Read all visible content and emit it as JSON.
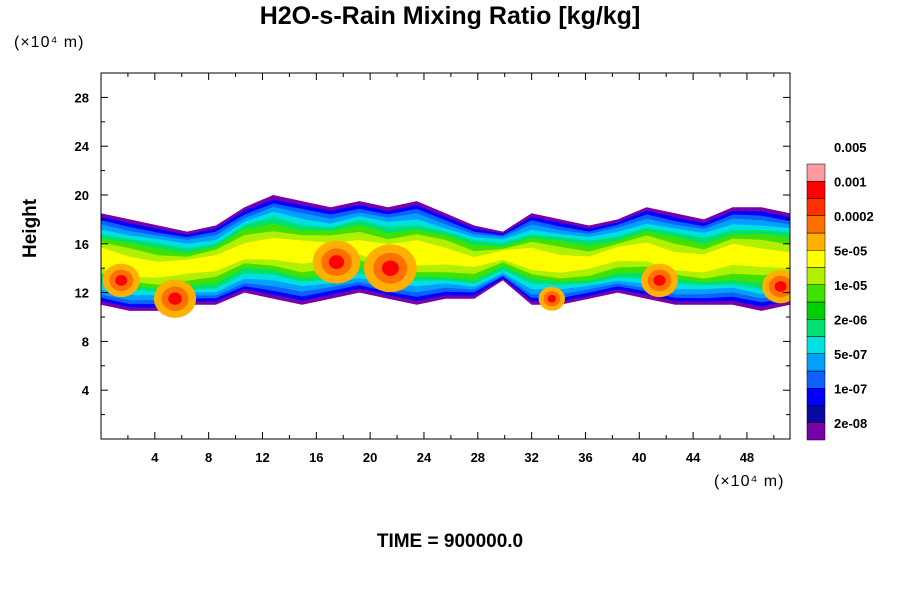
{
  "chart_data": {
    "type": "heatmap",
    "title": "H2O-s-Rain Mixing Ratio [kg/kg]",
    "xlabel": "",
    "ylabel": "Height",
    "x_unit_label": "(×10⁴ m)",
    "y_unit_label": "(×10⁴ m)",
    "xlim": [
      0,
      51.2
    ],
    "ylim": [
      0,
      30
    ],
    "x_ticks": [
      4,
      8,
      12,
      16,
      20,
      24,
      28,
      32,
      36,
      40,
      44,
      48
    ],
    "y_ticks": [
      4,
      8,
      12,
      16,
      20,
      24,
      28
    ],
    "x_tick_labels": [
      "4",
      "8",
      "12",
      "16",
      "20",
      "24",
      "28",
      "32",
      "36",
      "40",
      "44",
      "48"
    ],
    "y_tick_labels": [
      "4",
      "8",
      "12",
      "16",
      "20",
      "24",
      "28"
    ],
    "colorbar": {
      "levels": [
        "2e-08",
        "1e-07",
        "5e-07",
        "2e-06",
        "1e-05",
        "5e-05",
        "0.0002",
        "0.001",
        "0.005"
      ],
      "colors": [
        "#7a00a8",
        "#0a0aa0",
        "#0000ff",
        "#1060ff",
        "#00a0ff",
        "#00e0e0",
        "#00e070",
        "#00d000",
        "#40e000",
        "#b0f000",
        "#ffff00",
        "#ffb000",
        "#ff7000",
        "#ff3000",
        "#ff0000",
        "#ff9aa0"
      ]
    },
    "cloud_band": {
      "x_range": [
        0,
        51.2
      ],
      "bottom": [
        11,
        10.5,
        10.5,
        11,
        11,
        12,
        11.5,
        11,
        11.5,
        12,
        11.5,
        11,
        11.5,
        11.5,
        13,
        11,
        11,
        11.5,
        12,
        11.5,
        11,
        11,
        11,
        10.5,
        11
      ],
      "top": [
        18.5,
        18,
        17.5,
        17,
        17.5,
        19,
        20,
        19.5,
        19,
        19.5,
        19,
        19.5,
        18.5,
        17.5,
        17,
        18.5,
        18,
        17.5,
        18,
        19,
        18.5,
        18,
        19,
        19,
        18.5
      ],
      "hotspots": [
        {
          "x": 1.5,
          "y": 13,
          "r": 0.7
        },
        {
          "x": 5.5,
          "y": 11.5,
          "r": 0.8
        },
        {
          "x": 17.5,
          "y": 14.5,
          "r": 0.9
        },
        {
          "x": 21.5,
          "y": 14,
          "r": 1.0
        },
        {
          "x": 33.5,
          "y": 11.5,
          "r": 0.5
        },
        {
          "x": 41.5,
          "y": 13,
          "r": 0.7
        },
        {
          "x": 50.5,
          "y": 12.5,
          "r": 0.7
        }
      ]
    },
    "grid": false,
    "legend": "right colorbar"
  },
  "footer": {
    "time_label": "TIME = 900000.0"
  }
}
